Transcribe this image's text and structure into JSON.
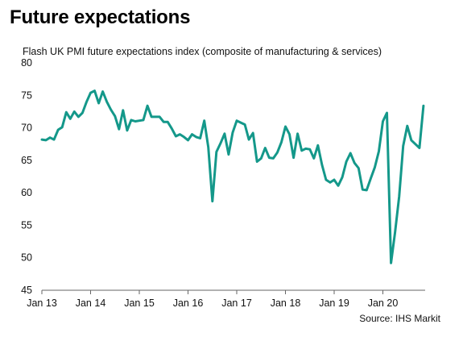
{
  "header": {
    "title": "Future expectations",
    "subtitle": "Flash UK PMI future expectations  index (composite of manufacturing & services)"
  },
  "footer": {
    "source": "Source: IHS Markit"
  },
  "colors": {
    "line": "#14988a",
    "axis": "#666666"
  },
  "chart_data": {
    "type": "line",
    "x_tick_labels": [
      "Jan 13",
      "Jan 14",
      "Jan 15",
      "Jan 16",
      "Jan 17",
      "Jan 18",
      "Jan 19",
      "Jan 20"
    ],
    "y_ticks": [
      45,
      50,
      55,
      60,
      65,
      70,
      75,
      80
    ],
    "ylim": [
      45,
      80
    ],
    "grid": false,
    "series": [
      {
        "values": [
          68.2,
          68.1,
          68.5,
          68.2,
          69.7,
          70.1,
          72.4,
          71.4,
          72.5,
          71.7,
          72.3,
          74.0,
          75.4,
          75.7,
          73.8,
          75.6,
          74.0,
          72.8,
          71.8,
          69.8,
          72.7,
          69.6,
          71.2,
          71.0,
          71.1,
          71.2,
          73.4,
          71.7,
          71.7,
          71.7,
          70.9,
          70.9,
          69.9,
          68.7,
          69.0,
          68.6,
          68.1,
          69.0,
          68.6,
          68.4,
          71.1,
          67.0,
          58.7,
          66.3,
          67.6,
          69.1,
          65.9,
          69.3,
          71.1,
          70.8,
          70.5,
          68.2,
          69.2,
          64.8,
          65.3,
          66.9,
          65.4,
          65.3,
          66.2,
          67.8,
          70.2,
          69.0,
          65.4,
          69.1,
          66.5,
          66.8,
          66.7,
          65.3,
          67.3,
          64.3,
          62.0,
          61.6,
          62.0,
          61.1,
          62.4,
          64.8,
          66.1,
          64.6,
          63.8,
          60.5,
          60.4,
          62.2,
          63.9,
          66.4,
          71.0,
          72.3,
          49.2,
          53.9,
          59.4,
          67.2,
          70.3,
          68.1,
          67.5,
          66.9,
          73.4
        ]
      }
    ]
  }
}
